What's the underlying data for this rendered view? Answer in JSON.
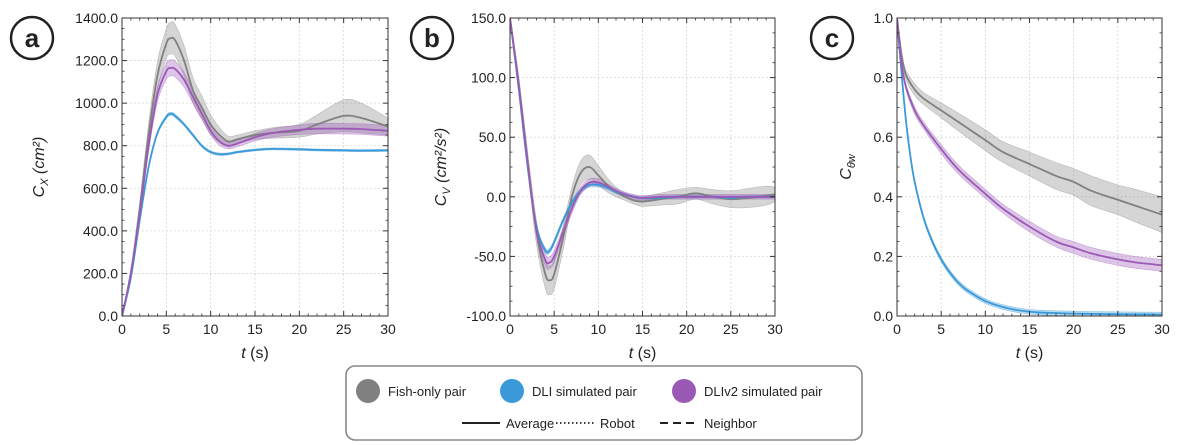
{
  "chart_data": [
    {
      "type": "line",
      "panel_label": "a",
      "ylabel_var": "C",
      "ylabel_sub": "X",
      "ylabel_unit": "cm²",
      "xlabel_var": "t",
      "xlabel_unit": "(s)",
      "xlim": [
        0,
        30
      ],
      "ylim": [
        0,
        1400
      ],
      "grid": true,
      "xticks": [
        "0",
        "5",
        "10",
        "15",
        "20",
        "25",
        "30"
      ],
      "xtick_values": [
        0,
        5,
        10,
        15,
        20,
        25,
        30
      ],
      "yticks": [
        "0.0",
        "200.0",
        "400.0",
        "600.0",
        "800.0",
        "1000.0",
        "1200.0",
        "1400.0"
      ],
      "ytick_values": [
        0,
        200,
        400,
        600,
        800,
        1000,
        1200,
        1400
      ],
      "series": [
        {
          "group": "Fish-only pair",
          "style": "Average",
          "color": "#808080",
          "x": [
            0,
            1,
            2,
            3,
            4,
            5,
            5.5,
            6,
            7,
            8,
            9,
            10,
            11,
            12,
            13,
            15,
            17,
            20,
            22,
            25,
            27,
            30
          ],
          "y": [
            0,
            200,
            500,
            850,
            1130,
            1280,
            1305,
            1295,
            1200,
            1060,
            980,
            900,
            850,
            820,
            830,
            850,
            860,
            870,
            900,
            940,
            930,
            890
          ],
          "band": [
            10,
            25,
            40,
            55,
            65,
            70,
            75,
            75,
            70,
            60,
            55,
            45,
            35,
            25,
            20,
            20,
            25,
            30,
            45,
            75,
            70,
            40
          ]
        },
        {
          "group": "DLI simulated pair",
          "style": "Average",
          "color": "#3a9ad9",
          "x": [
            0,
            1,
            2,
            3,
            4,
            5,
            5.5,
            6,
            7,
            8,
            9,
            10,
            11,
            12,
            13,
            15,
            17,
            20,
            22,
            25,
            27,
            30
          ],
          "y": [
            0,
            180,
            450,
            700,
            860,
            935,
            950,
            940,
            900,
            850,
            800,
            770,
            760,
            762,
            770,
            780,
            785,
            783,
            780,
            778,
            777,
            778
          ],
          "band": [
            3,
            5,
            6,
            7,
            8,
            8,
            8,
            8,
            7,
            7,
            6,
            6,
            6,
            5,
            5,
            5,
            5,
            5,
            5,
            5,
            5,
            5
          ]
        },
        {
          "group": "DLIv2 simulated pair",
          "style": "Average",
          "color": "#9b59b6",
          "x": [
            0,
            1,
            2,
            3,
            4,
            5,
            5.5,
            6,
            7,
            8,
            9,
            10,
            11,
            12,
            13,
            15,
            17,
            20,
            22,
            25,
            27,
            30
          ],
          "y": [
            0,
            200,
            480,
            800,
            1040,
            1150,
            1165,
            1160,
            1110,
            1030,
            950,
            870,
            820,
            800,
            810,
            840,
            860,
            875,
            880,
            880,
            878,
            870
          ],
          "band": [
            5,
            12,
            20,
            30,
            35,
            38,
            38,
            38,
            35,
            30,
            25,
            20,
            18,
            15,
            15,
            18,
            20,
            22,
            25,
            25,
            25,
            25
          ]
        }
      ]
    },
    {
      "type": "line",
      "panel_label": "b",
      "ylabel_var": "C",
      "ylabel_sub": "V",
      "ylabel_unit": "cm²/s²",
      "xlabel_var": "t",
      "xlabel_unit": "(s)",
      "xlim": [
        0,
        30
      ],
      "ylim": [
        -100,
        150
      ],
      "grid": true,
      "xticks": [
        "0",
        "5",
        "10",
        "15",
        "20",
        "25",
        "30"
      ],
      "xtick_values": [
        0,
        5,
        10,
        15,
        20,
        25,
        30
      ],
      "yticks": [
        "-100.0",
        "-50.0",
        "0.0",
        "50.0",
        "100.0",
        "150.0"
      ],
      "ytick_values": [
        -100,
        -50,
        0,
        50,
        100,
        150
      ],
      "series": [
        {
          "group": "Fish-only pair",
          "style": "Average",
          "color": "#808080",
          "x": [
            0,
            1,
            2,
            3,
            4,
            4.5,
            5,
            6,
            7,
            8,
            9,
            10,
            11,
            12,
            13,
            14,
            15,
            17,
            19,
            21,
            23,
            25,
            27,
            29,
            30
          ],
          "y": [
            150,
            95,
            30,
            -30,
            -65,
            -70,
            -65,
            -35,
            0,
            20,
            25,
            18,
            10,
            4,
            0,
            -3,
            -4,
            -2,
            0,
            3,
            0,
            -2,
            -1,
            1,
            2
          ],
          "band": [
            2,
            5,
            8,
            10,
            12,
            12,
            12,
            10,
            8,
            10,
            10,
            8,
            6,
            4,
            3,
            3,
            4,
            5,
            6,
            5,
            6,
            7,
            8,
            8,
            6
          ]
        },
        {
          "group": "DLI simulated pair",
          "style": "Average",
          "color": "#3a9ad9",
          "x": [
            0,
            1,
            2,
            3,
            4,
            4.5,
            5,
            6,
            7,
            8,
            9,
            10,
            11,
            12,
            13,
            14,
            15,
            17,
            19,
            21,
            23,
            25,
            27,
            29,
            30
          ],
          "y": [
            150,
            90,
            25,
            -25,
            -45,
            -45,
            -38,
            -20,
            -5,
            5,
            10,
            10,
            8,
            4,
            2,
            0,
            -1,
            -1,
            0,
            0,
            0,
            -1,
            0,
            0,
            0
          ],
          "band": [
            1,
            2,
            2,
            2,
            2,
            2,
            2,
            2,
            2,
            2,
            2,
            2,
            2,
            1,
            1,
            1,
            1,
            1,
            1,
            1,
            1,
            1,
            1,
            1,
            1
          ]
        },
        {
          "group": "DLIv2 simulated pair",
          "style": "Average",
          "color": "#9b59b6",
          "x": [
            0,
            1,
            2,
            3,
            4,
            4.5,
            5,
            6,
            7,
            8,
            9,
            10,
            11,
            12,
            13,
            14,
            15,
            17,
            19,
            21,
            23,
            25,
            27,
            29,
            30
          ],
          "y": [
            150,
            92,
            28,
            -28,
            -53,
            -55,
            -50,
            -30,
            -10,
            5,
            12,
            12,
            9,
            5,
            2,
            0,
            -1,
            0,
            0,
            0,
            0,
            0,
            0,
            0,
            0
          ],
          "band": [
            1,
            3,
            3,
            4,
            5,
            5,
            5,
            4,
            4,
            3,
            3,
            3,
            2,
            2,
            2,
            2,
            2,
            2,
            2,
            2,
            2,
            2,
            2,
            2,
            2
          ]
        }
      ]
    },
    {
      "type": "line",
      "panel_label": "c",
      "ylabel_var": "C",
      "ylabel_sub": "θw",
      "ylabel_unit": "",
      "xlabel_var": "t",
      "xlabel_unit": "(s)",
      "xlim": [
        0,
        30
      ],
      "ylim": [
        0,
        1.0
      ],
      "grid": true,
      "xticks": [
        "0",
        "5",
        "10",
        "15",
        "20",
        "25",
        "30"
      ],
      "xtick_values": [
        0,
        5,
        10,
        15,
        20,
        25,
        30
      ],
      "yticks": [
        "0.0",
        "0.2",
        "0.4",
        "0.6",
        "0.8",
        "1.0"
      ],
      "ytick_values": [
        0,
        0.2,
        0.4,
        0.6,
        0.8,
        1.0
      ],
      "series": [
        {
          "group": "Fish-only pair",
          "style": "Average",
          "color": "#808080",
          "x": [
            0,
            0.5,
            1,
            2,
            3,
            5,
            7,
            10,
            12,
            15,
            18,
            20,
            22,
            25,
            27,
            30
          ],
          "y": [
            1.0,
            0.88,
            0.81,
            0.76,
            0.73,
            0.69,
            0.65,
            0.59,
            0.55,
            0.51,
            0.47,
            0.45,
            0.42,
            0.39,
            0.37,
            0.34
          ],
          "band": [
            0.0,
            0.01,
            0.015,
            0.02,
            0.02,
            0.025,
            0.03,
            0.035,
            0.035,
            0.04,
            0.045,
            0.045,
            0.05,
            0.05,
            0.055,
            0.06
          ]
        },
        {
          "group": "DLI simulated pair",
          "style": "Average",
          "color": "#3a9ad9",
          "x": [
            0,
            0.5,
            1,
            1.5,
            2,
            3,
            4,
            5,
            6,
            7,
            8,
            10,
            12,
            14,
            16,
            18,
            20,
            25,
            30
          ],
          "y": [
            1.0,
            0.82,
            0.66,
            0.54,
            0.45,
            0.33,
            0.25,
            0.19,
            0.145,
            0.11,
            0.085,
            0.05,
            0.03,
            0.018,
            0.012,
            0.01,
            0.008,
            0.006,
            0.005
          ],
          "band": [
            0.0,
            0.008,
            0.008,
            0.008,
            0.008,
            0.008,
            0.008,
            0.008,
            0.008,
            0.008,
            0.008,
            0.008,
            0.008,
            0.008,
            0.008,
            0.008,
            0.008,
            0.008,
            0.008
          ]
        },
        {
          "group": "DLIv2 simulated pair",
          "style": "Average",
          "color": "#9b59b6",
          "x": [
            0,
            0.5,
            1,
            2,
            3,
            5,
            7,
            10,
            12,
            15,
            18,
            20,
            22,
            25,
            27,
            30
          ],
          "y": [
            1.0,
            0.85,
            0.77,
            0.69,
            0.64,
            0.56,
            0.49,
            0.41,
            0.36,
            0.3,
            0.25,
            0.23,
            0.21,
            0.19,
            0.18,
            0.17
          ],
          "band": [
            0.0,
            0.008,
            0.01,
            0.012,
            0.012,
            0.015,
            0.015,
            0.015,
            0.015,
            0.018,
            0.018,
            0.02,
            0.02,
            0.02,
            0.02,
            0.02
          ]
        }
      ]
    }
  ],
  "legend": {
    "groups": [
      {
        "label": "Fish-only pair",
        "color": "#808080"
      },
      {
        "label": "DLI simulated pair",
        "color": "#3a9ad9"
      },
      {
        "label": "DLIv2 simulated pair",
        "color": "#9b59b6"
      }
    ],
    "styles": [
      {
        "label": "Average",
        "dash": "solid"
      },
      {
        "label": "Robot",
        "dash": "dotted"
      },
      {
        "label": "Neighbor",
        "dash": "dashed"
      }
    ]
  }
}
